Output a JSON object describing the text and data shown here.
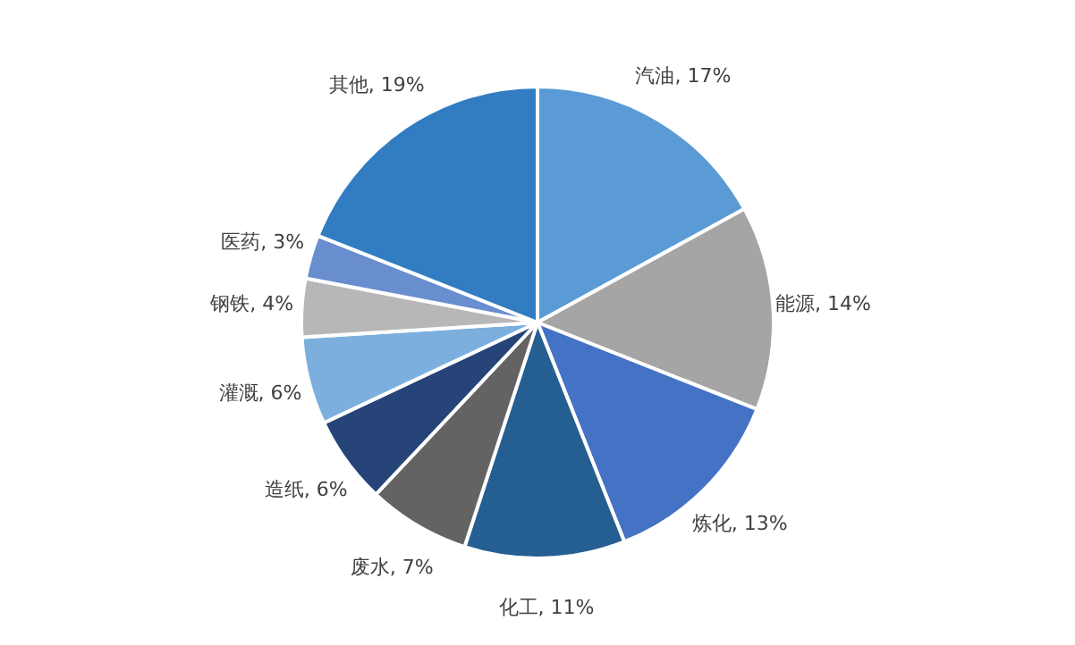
{
  "chart_data": {
    "type": "pie",
    "categories": [
      "汽油",
      "能源",
      "炼化",
      "化工",
      "废水",
      "造纸",
      "灌溉",
      "钢铁",
      "医药",
      "其他"
    ],
    "values": [
      17,
      14,
      13,
      11,
      7,
      6,
      6,
      4,
      3,
      19
    ],
    "value_labels": [
      "17%",
      "14%",
      "13%",
      "11%",
      "7%",
      "6%",
      "6%",
      "4%",
      "3%",
      "19%"
    ],
    "colors": [
      "#5b9bd5",
      "#a5a5a5",
      "#4472c4",
      "#255e91",
      "#636363",
      "#264478",
      "#7cafdd",
      "#b7b7b7",
      "#698ed0",
      "#327dc2"
    ]
  }
}
